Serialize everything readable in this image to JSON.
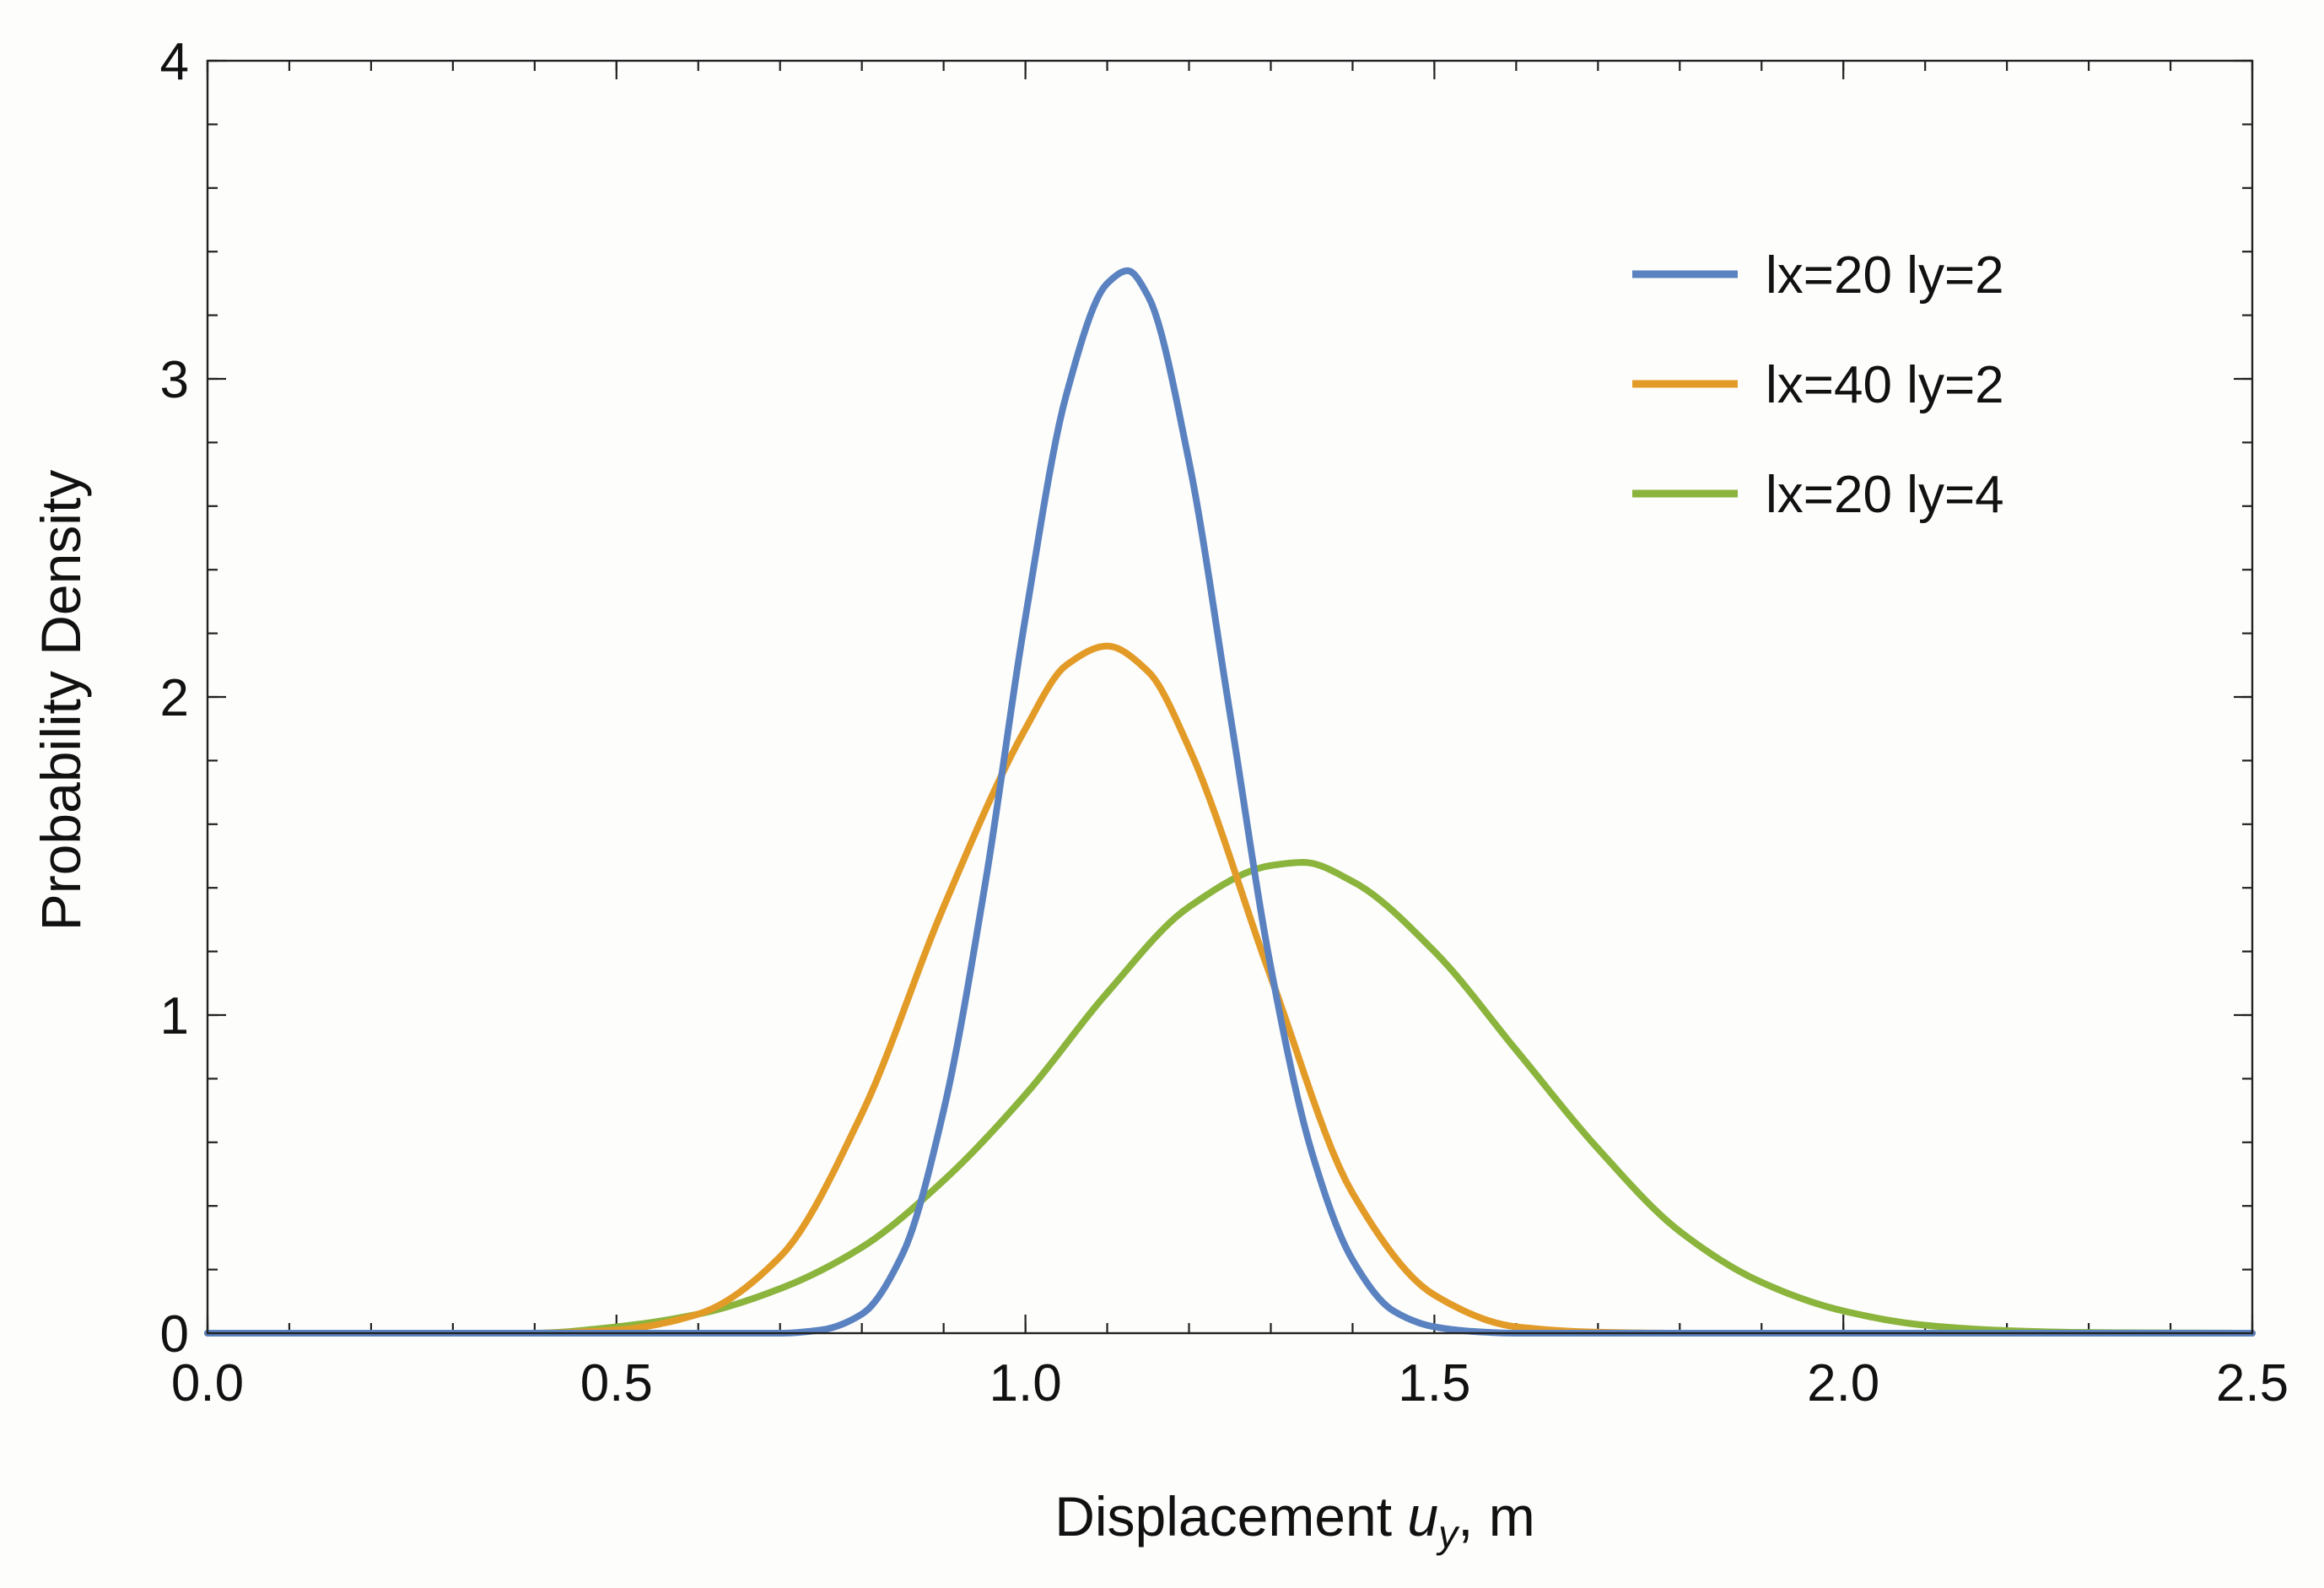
{
  "chart_data": {
    "type": "line",
    "title": "",
    "xlabel_main": "Displacement ",
    "xlabel_var": "u",
    "xlabel_sub": "y",
    "xlabel_unit": ", m",
    "ylabel": "Probability Density",
    "xlim": [
      0.0,
      2.5
    ],
    "ylim": [
      0,
      4
    ],
    "x_major_ticks": [
      0.0,
      0.5,
      1.0,
      1.5,
      2.0,
      2.5
    ],
    "x_tick_labels": [
      "0.0",
      "0.5",
      "1.0",
      "1.5",
      "2.0",
      "2.5"
    ],
    "x_minor_step": 0.1,
    "y_major_ticks": [
      0,
      1,
      2,
      3,
      4
    ],
    "y_tick_labels": [
      "0",
      "1",
      "2",
      "3",
      "4"
    ],
    "y_minor_step": 0.2,
    "legend_position": "top-right",
    "grid": false,
    "series": [
      {
        "name": "lx=20 ly=2",
        "color": "#5b82c0",
        "x": [
          0.0,
          0.7,
          0.75,
          0.8,
          0.85,
          0.9,
          0.95,
          1.0,
          1.05,
          1.1,
          1.125,
          1.15,
          1.2,
          1.25,
          1.3,
          1.35,
          1.4,
          1.45,
          1.5,
          1.55,
          1.6,
          2.5
        ],
        "y": [
          0.0,
          0.0,
          0.01,
          0.06,
          0.25,
          0.7,
          1.4,
          2.25,
          2.95,
          3.3,
          3.34,
          3.26,
          2.74,
          1.95,
          1.15,
          0.57,
          0.23,
          0.07,
          0.02,
          0.005,
          0.0,
          0.0
        ]
      },
      {
        "name": "lx=40 ly=2",
        "color": "#e39b28",
        "x": [
          0.0,
          0.4,
          0.5,
          0.6,
          0.7,
          0.8,
          0.9,
          1.0,
          1.05,
          1.1,
          1.15,
          1.2,
          1.3,
          1.4,
          1.5,
          1.6,
          1.7,
          1.8,
          2.5
        ],
        "y": [
          0.0,
          0.0,
          0.01,
          0.06,
          0.24,
          0.69,
          1.34,
          1.9,
          2.1,
          2.16,
          2.08,
          1.84,
          1.12,
          0.44,
          0.12,
          0.02,
          0.003,
          0.0,
          0.0
        ]
      },
      {
        "name": "lx=20 ly=4",
        "color": "#8bb43c",
        "x": [
          0.0,
          0.4,
          0.5,
          0.6,
          0.7,
          0.8,
          0.9,
          1.0,
          1.1,
          1.2,
          1.3,
          1.34,
          1.4,
          1.5,
          1.6,
          1.7,
          1.8,
          1.9,
          2.0,
          2.1,
          2.2,
          2.3,
          2.5
        ],
        "y": [
          0.0,
          0.0,
          0.02,
          0.06,
          0.14,
          0.27,
          0.48,
          0.75,
          1.07,
          1.34,
          1.47,
          1.48,
          1.42,
          1.2,
          0.89,
          0.58,
          0.32,
          0.16,
          0.07,
          0.025,
          0.008,
          0.002,
          0.0
        ]
      }
    ]
  }
}
